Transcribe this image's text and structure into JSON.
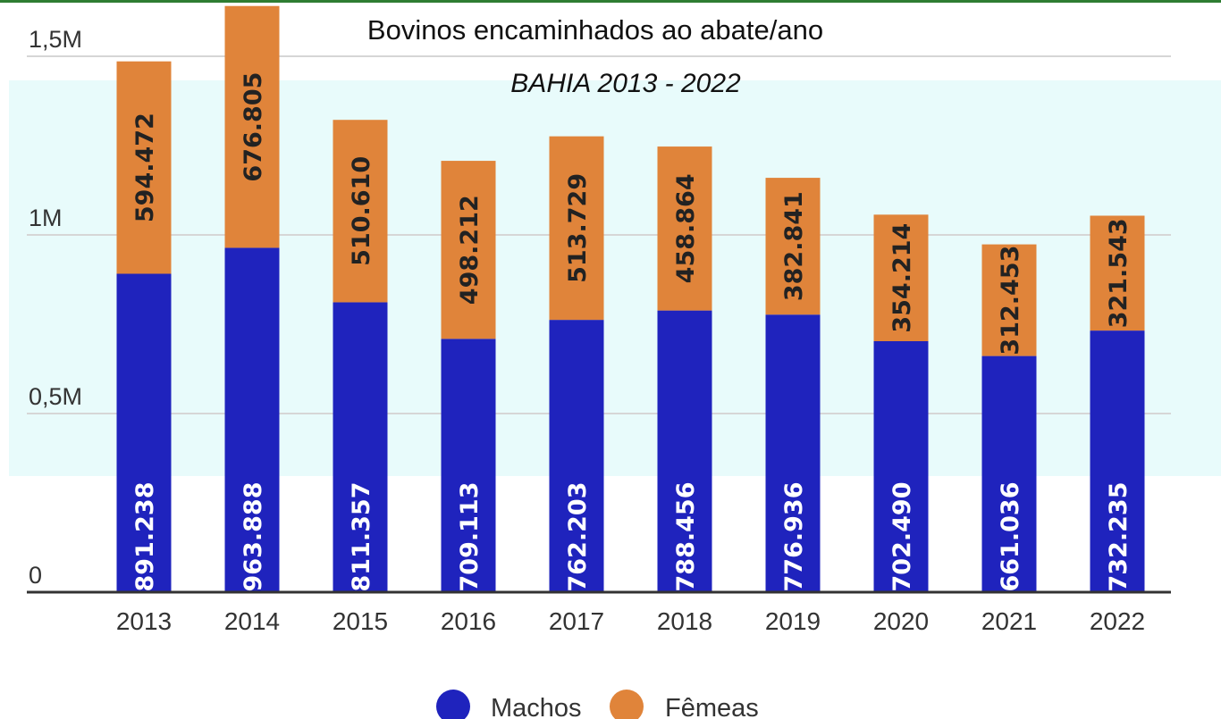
{
  "chart_data": {
    "type": "bar",
    "stacked": true,
    "title": "Bovinos encaminhados ao abate/ano",
    "subtitle": "BAHIA 2013 - 2022",
    "categories": [
      "2013",
      "2014",
      "2015",
      "2016",
      "2017",
      "2018",
      "2019",
      "2020",
      "2021",
      "2022"
    ],
    "series": [
      {
        "name": "Machos",
        "color": "#1f23bd",
        "values": [
          891238,
          963888,
          811357,
          709113,
          762203,
          788456,
          776936,
          702490,
          661036,
          732235
        ],
        "labels": [
          "891.238",
          "963.888",
          "811.357",
          "709.113",
          "762.203",
          "788.456",
          "776.936",
          "702.490",
          "661.036",
          "732.235"
        ]
      },
      {
        "name": "Fêmeas",
        "color": "#e0843a",
        "values": [
          594472,
          676805,
          510610,
          498212,
          513729,
          458864,
          382841,
          354214,
          312453,
          321543
        ],
        "labels": [
          "594.472",
          "676.805",
          "510.610",
          "498.212",
          "513.729",
          "458.864",
          "382.841",
          "354.214",
          "312.453",
          "321.543"
        ]
      }
    ],
    "ylim": [
      0,
      1500000
    ],
    "yticks": [
      {
        "value": 0,
        "label": "0"
      },
      {
        "value": 500000,
        "label": "0,5M"
      },
      {
        "value": 1000000,
        "label": "1M"
      },
      {
        "value": 1500000,
        "label": "1,5M"
      }
    ],
    "xlabel": "",
    "ylabel": "",
    "grid": true,
    "legend_position": "bottom"
  },
  "highlight_color": "#e8fbfb",
  "axis_color": "#333333"
}
